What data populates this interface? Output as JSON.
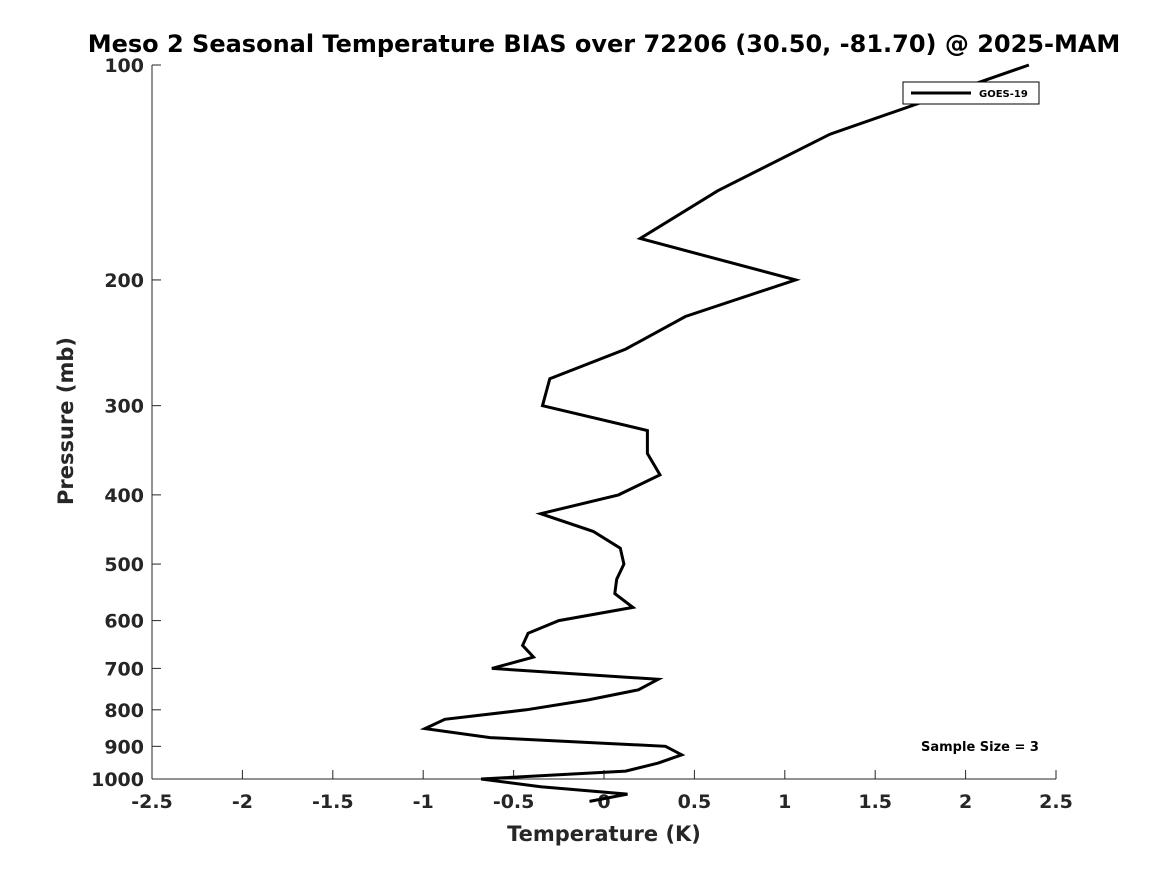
{
  "chart_data": {
    "type": "line",
    "title": "Meso 2 Seasonal Temperature BIAS over 72206 (30.50, -81.70) @ 2025-MAM",
    "xlabel": "Temperature (K)",
    "ylabel": "Pressure (mb)",
    "xlim": [
      -2.5,
      2.5
    ],
    "ylim": [
      1000,
      100
    ],
    "yscale": "log",
    "grid": false,
    "x_ticks": [
      -2.5,
      -2,
      -1.5,
      -1,
      -0.5,
      0,
      0.5,
      1,
      1.5,
      2,
      2.5
    ],
    "x_tick_labels": [
      "-2.5",
      "-2",
      "-1.5",
      "-1",
      "-0.5",
      "0",
      "0.5",
      "1",
      "1.5",
      "2",
      "2.5"
    ],
    "y_ticks": [
      100,
      200,
      300,
      400,
      500,
      600,
      700,
      800,
      900,
      1000
    ],
    "y_tick_labels": [
      "100",
      "200",
      "300",
      "400",
      "500",
      "600",
      "700",
      "800",
      "900",
      "1000"
    ],
    "legend": {
      "position": "top-right",
      "entries": [
        "GOES-19"
      ]
    },
    "annotation": "Sample Size = 3",
    "series": [
      {
        "name": "GOES-19",
        "color": "#000000",
        "points": [
          {
            "x": 2.35,
            "p": 100
          },
          {
            "x": 1.25,
            "p": 125
          },
          {
            "x": 0.63,
            "p": 150
          },
          {
            "x": 0.2,
            "p": 175
          },
          {
            "x": 1.06,
            "p": 200
          },
          {
            "x": 0.45,
            "p": 225
          },
          {
            "x": 0.12,
            "p": 250
          },
          {
            "x": -0.3,
            "p": 275
          },
          {
            "x": -0.34,
            "p": 300
          },
          {
            "x": 0.24,
            "p": 325
          },
          {
            "x": 0.24,
            "p": 350
          },
          {
            "x": 0.31,
            "p": 375
          },
          {
            "x": 0.08,
            "p": 400
          },
          {
            "x": -0.35,
            "p": 425
          },
          {
            "x": -0.06,
            "p": 450
          },
          {
            "x": 0.09,
            "p": 475
          },
          {
            "x": 0.11,
            "p": 500
          },
          {
            "x": 0.07,
            "p": 525
          },
          {
            "x": 0.06,
            "p": 550
          },
          {
            "x": 0.16,
            "p": 575
          },
          {
            "x": -0.25,
            "p": 600
          },
          {
            "x": -0.42,
            "p": 625
          },
          {
            "x": -0.45,
            "p": 650
          },
          {
            "x": -0.39,
            "p": 675
          },
          {
            "x": -0.62,
            "p": 700
          },
          {
            "x": 0.3,
            "p": 725
          },
          {
            "x": 0.19,
            "p": 750
          },
          {
            "x": -0.09,
            "p": 775
          },
          {
            "x": -0.43,
            "p": 800
          },
          {
            "x": -0.88,
            "p": 825
          },
          {
            "x": -0.99,
            "p": 850
          },
          {
            "x": -0.63,
            "p": 875
          },
          {
            "x": 0.34,
            "p": 900
          },
          {
            "x": 0.43,
            "p": 925
          },
          {
            "x": 0.3,
            "p": 950
          },
          {
            "x": 0.12,
            "p": 975
          },
          {
            "x": -0.68,
            "p": 1000
          },
          {
            "x": -0.35,
            "p": 1025
          },
          {
            "x": 0.13,
            "p": 1050
          },
          {
            "x": -0.08,
            "p": 1075
          }
        ]
      }
    ]
  }
}
